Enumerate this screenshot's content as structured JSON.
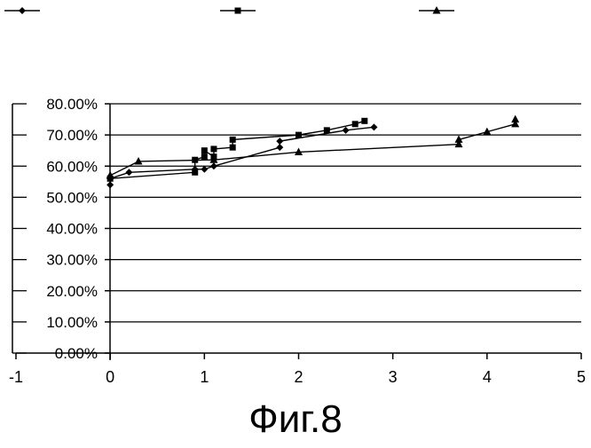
{
  "figure": {
    "caption": "Фиг.8"
  },
  "chart_data": {
    "type": "scatter",
    "title": "",
    "xlabel": "",
    "ylabel": "",
    "xlim": [
      -1,
      5
    ],
    "ylim": [
      0,
      0.8
    ],
    "x_ticks": [
      -1,
      0,
      1,
      2,
      3,
      4,
      5
    ],
    "x_tick_labels": [
      "-1",
      "0",
      "1",
      "2",
      "3",
      "4",
      "5"
    ],
    "y_ticks": [
      0,
      0.1,
      0.2,
      0.3,
      0.4,
      0.5,
      0.6,
      0.7,
      0.8
    ],
    "y_tick_labels": [
      "0.00%",
      "10.00%",
      "20.00%",
      "30.00%",
      "40.00%",
      "50.00%",
      "60.00%",
      "70.00%",
      "80.00%"
    ],
    "grid": "horizontal",
    "legend": "top",
    "series": [
      {
        "marker": "diamond",
        "x": [
          0,
          0,
          0.2,
          0.9,
          1.0,
          1.1,
          1.8,
          1.8,
          2.5,
          2.8
        ],
        "y": [
          0.54,
          0.56,
          0.58,
          0.59,
          0.59,
          0.6,
          0.66,
          0.68,
          0.715,
          0.725
        ]
      },
      {
        "marker": "square",
        "x": [
          0,
          0.9,
          0.9,
          1.0,
          1.0,
          1.1,
          1.1,
          1.3,
          1.3,
          2.0,
          2.3,
          2.6,
          2.7
        ],
        "y": [
          0.56,
          0.58,
          0.62,
          0.63,
          0.65,
          0.63,
          0.655,
          0.66,
          0.685,
          0.7,
          0.715,
          0.735,
          0.745
        ]
      },
      {
        "marker": "triangle",
        "x": [
          0,
          0.3,
          1.1,
          2.0,
          3.7,
          3.7,
          4.0,
          4.3,
          4.3
        ],
        "y": [
          0.57,
          0.615,
          0.62,
          0.645,
          0.67,
          0.685,
          0.71,
          0.735,
          0.75
        ]
      }
    ]
  }
}
